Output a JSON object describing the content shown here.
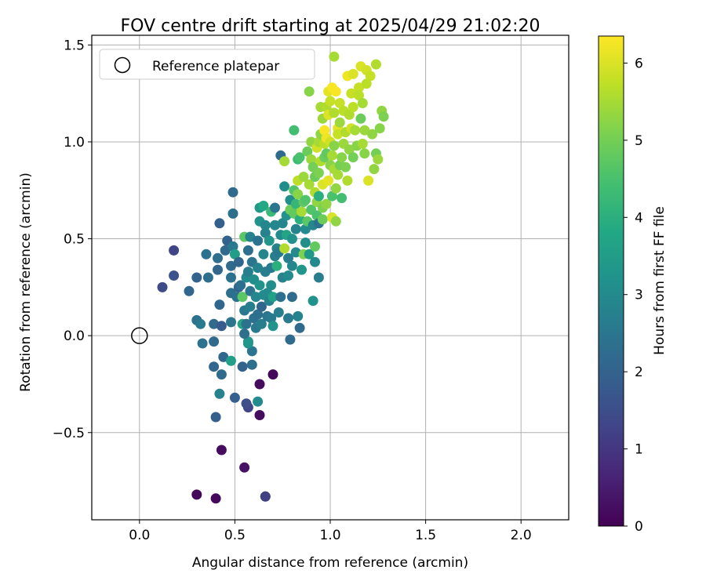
{
  "chart_data": {
    "type": "scatter",
    "title": "FOV centre drift starting at 2025/04/29 21:02:20",
    "xlabel": "Angular distance from reference (arcmin)",
    "ylabel": "Rotation from reference (arcmin)",
    "xlim": [
      -0.25,
      2.25
    ],
    "ylim": [
      -0.95,
      1.55
    ],
    "xticks": [
      0.0,
      0.5,
      1.0,
      1.5,
      2.0
    ],
    "xtick_labels": [
      "0.0",
      "0.5",
      "1.0",
      "1.5",
      "2.0"
    ],
    "yticks": [
      -0.5,
      0.0,
      0.5,
      1.0,
      1.5
    ],
    "ytick_labels": [
      "−0.5",
      "0.0",
      "0.5",
      "1.0",
      "1.5"
    ],
    "grid": true,
    "legend": {
      "placement": "top-left",
      "entries": [
        "Reference platepar"
      ]
    },
    "reference_point": {
      "x": 0.0,
      "y": 0.0
    },
    "colorbar": {
      "label": "Hours from first FF file",
      "colormap": "viridis",
      "range": [
        0,
        6.35
      ],
      "ticks": [
        0,
        1,
        2,
        3,
        4,
        5,
        6
      ],
      "tick_labels": [
        "0",
        "1",
        "2",
        "3",
        "4",
        "5",
        "6"
      ]
    },
    "series": [
      {
        "points": [
          [
            0.3,
            -0.82,
            0.1
          ],
          [
            0.4,
            -0.84,
            0.1
          ],
          [
            0.43,
            -0.59,
            0.2
          ],
          [
            0.55,
            -0.68,
            0.3
          ],
          [
            0.66,
            -0.83,
            1.6
          ],
          [
            0.66,
            -0.83,
            1.2
          ],
          [
            0.63,
            -0.41,
            0.2
          ],
          [
            0.63,
            -0.25,
            0.2
          ],
          [
            0.7,
            -0.2,
            0.1
          ],
          [
            0.57,
            -0.37,
            1.3
          ],
          [
            0.56,
            -0.35,
            1.5
          ],
          [
            0.5,
            -0.32,
            1.9
          ],
          [
            0.4,
            -0.42,
            1.9
          ],
          [
            0.42,
            -0.3,
            2.8
          ],
          [
            0.62,
            -0.34,
            3.0
          ],
          [
            0.39,
            -0.16,
            2.1
          ],
          [
            0.43,
            -0.2,
            2.2
          ],
          [
            0.44,
            -0.11,
            2.1
          ],
          [
            0.48,
            -0.13,
            3.6
          ],
          [
            0.54,
            -0.16,
            2.0
          ],
          [
            0.59,
            -0.15,
            2.3
          ],
          [
            0.59,
            -0.08,
            2.5
          ],
          [
            0.57,
            -0.04,
            3.2
          ],
          [
            0.57,
            -0.03,
            3.3
          ],
          [
            0.12,
            0.25,
            1.4
          ],
          [
            0.18,
            0.44,
            1.3
          ],
          [
            0.18,
            0.31,
            1.6
          ],
          [
            0.26,
            0.23,
            2.1
          ],
          [
            0.3,
            0.3,
            2.0
          ],
          [
            0.3,
            0.08,
            2.4
          ],
          [
            0.32,
            0.06,
            2.6
          ],
          [
            0.33,
            -0.04,
            2.4
          ],
          [
            0.36,
            0.3,
            2.3
          ],
          [
            0.35,
            0.42,
            2.4
          ],
          [
            0.39,
            0.06,
            2.2
          ],
          [
            0.39,
            -0.03,
            2.2
          ],
          [
            0.41,
            0.34,
            2.1
          ],
          [
            0.41,
            0.4,
            2.3
          ],
          [
            0.42,
            0.16,
            2.1
          ],
          [
            0.43,
            0.05,
            1.8
          ],
          [
            0.42,
            0.58,
            1.9
          ],
          [
            0.45,
            0.44,
            2.2
          ],
          [
            0.46,
            0.49,
            2.0
          ],
          [
            0.48,
            0.22,
            2.3
          ],
          [
            0.48,
            0.3,
            2.4
          ],
          [
            0.48,
            0.36,
            2.2
          ],
          [
            0.49,
            0.46,
            2.6
          ],
          [
            0.48,
            0.07,
            2.5
          ],
          [
            0.49,
            0.74,
            2.2
          ],
          [
            0.49,
            0.63,
            2.3
          ],
          [
            0.5,
            0.42,
            3.5
          ],
          [
            0.51,
            0.2,
            2.4
          ],
          [
            0.52,
            0.25,
            2.0
          ],
          [
            0.52,
            0.38,
            2.1
          ],
          [
            0.53,
            0.26,
            2.3
          ],
          [
            0.54,
            0.06,
            3.7
          ],
          [
            0.55,
            0.13,
            2.6
          ],
          [
            0.54,
            0.2,
            4.7
          ],
          [
            0.55,
            0.51,
            4.7
          ],
          [
            0.55,
            0.01,
            2.3
          ],
          [
            0.56,
            0.06,
            2.4
          ],
          [
            0.56,
            0.3,
            3.0
          ],
          [
            0.57,
            0.44,
            2.3
          ],
          [
            0.57,
            0.33,
            2.7
          ],
          [
            0.58,
            0.15,
            2.7
          ],
          [
            0.58,
            0.23,
            2.5
          ],
          [
            0.58,
            0.51,
            2.8
          ],
          [
            0.59,
            0.38,
            2.5
          ],
          [
            0.6,
            0.09,
            2.4
          ],
          [
            0.6,
            0.29,
            3.1
          ],
          [
            0.61,
            0.04,
            2.6
          ],
          [
            0.61,
            0.2,
            2.9
          ],
          [
            0.62,
            0.11,
            2.3
          ],
          [
            0.62,
            0.49,
            2.4
          ],
          [
            0.62,
            0.35,
            2.8
          ],
          [
            0.63,
            0.26,
            3.2
          ],
          [
            0.63,
            0.66,
            3.4
          ],
          [
            0.63,
            0.59,
            3.2
          ],
          [
            0.64,
            0.06,
            2.7
          ],
          [
            0.64,
            0.15,
            2.1
          ],
          [
            0.65,
            0.21,
            3.0
          ],
          [
            0.65,
            0.42,
            2.9
          ],
          [
            0.65,
            0.67,
            3.8
          ],
          [
            0.66,
            0.33,
            2.7
          ],
          [
            0.66,
            0.53,
            2.8
          ],
          [
            0.66,
            0.57,
            2.9
          ],
          [
            0.67,
            0.1,
            2.5
          ],
          [
            0.67,
            0.22,
            3.0
          ],
          [
            0.68,
            0.18,
            2.8
          ],
          [
            0.68,
            0.49,
            3.3
          ],
          [
            0.69,
            0.09,
            2.6
          ],
          [
            0.69,
            0.26,
            3.1
          ],
          [
            0.69,
            0.35,
            2.6
          ],
          [
            0.69,
            0.64,
            4.3
          ],
          [
            0.7,
            0.05,
            3.2
          ],
          [
            0.7,
            0.2,
            3.6
          ],
          [
            0.71,
            0.41,
            2.7
          ],
          [
            0.71,
            0.57,
            2.9
          ],
          [
            0.71,
            0.66,
            2.5
          ],
          [
            0.72,
            0.36,
            4.0
          ],
          [
            0.72,
            0.45,
            2.8
          ],
          [
            0.73,
            0.12,
            2.7
          ],
          [
            0.73,
            0.43,
            2.6
          ],
          [
            0.74,
            0.2,
            2.3
          ],
          [
            0.74,
            0.52,
            3.0
          ],
          [
            0.74,
            0.93,
            2.2
          ],
          [
            0.75,
            0.3,
            2.8
          ],
          [
            0.75,
            0.58,
            2.9
          ],
          [
            0.76,
            0.77,
            3.1
          ],
          [
            0.76,
            0.9,
            5.5
          ],
          [
            0.76,
            0.45,
            5.6
          ],
          [
            0.77,
            0.52,
            3.7
          ],
          [
            0.77,
            0.62,
            3.2
          ],
          [
            0.78,
            0.09,
            2.6
          ],
          [
            0.78,
            0.31,
            3.0
          ],
          [
            0.78,
            0.4,
            2.7
          ],
          [
            0.79,
            0.7,
            3.1
          ],
          [
            0.79,
            0.65,
            4.9
          ],
          [
            0.79,
            -0.02,
            2.2
          ],
          [
            0.8,
            0.2,
            2.2
          ],
          [
            0.8,
            0.36,
            2.9
          ],
          [
            0.8,
            0.5,
            3.2
          ],
          [
            0.81,
            0.75,
            4.6
          ],
          [
            0.81,
            1.06,
            4.4
          ],
          [
            0.81,
            0.63,
            4.8
          ],
          [
            0.82,
            0.43,
            3.0
          ],
          [
            0.82,
            0.55,
            2.8
          ],
          [
            0.82,
            0.68,
            4.2
          ],
          [
            0.83,
            0.1,
            2.8
          ],
          [
            0.83,
            0.8,
            5.7
          ],
          [
            0.83,
            0.91,
            4.3
          ],
          [
            0.83,
            0.73,
            5.2
          ],
          [
            0.84,
            0.04,
            2.2
          ],
          [
            0.84,
            0.6,
            4.0
          ],
          [
            0.84,
            0.92,
            4.5
          ],
          [
            0.85,
            0.64,
            5.5
          ],
          [
            0.85,
            0.34,
            3.3
          ],
          [
            0.86,
            0.42,
            5.1
          ],
          [
            0.86,
            0.69,
            4.8
          ],
          [
            0.86,
            0.82,
            5.4
          ],
          [
            0.87,
            0.48,
            3.1
          ],
          [
            0.87,
            0.55,
            3.0
          ],
          [
            0.87,
            0.7,
            4.6
          ],
          [
            0.88,
            0.59,
            4.7
          ],
          [
            0.88,
            0.95,
            4.9
          ],
          [
            0.89,
            0.78,
            5.5
          ],
          [
            0.89,
            1.26,
            5.2
          ],
          [
            0.89,
            0.42,
            3.4
          ],
          [
            0.9,
            0.65,
            4.6
          ],
          [
            0.9,
            0.91,
            5.4
          ],
          [
            0.9,
            1.0,
            5.3
          ],
          [
            0.91,
            0.18,
            3.2
          ],
          [
            0.91,
            0.57,
            2.9
          ],
          [
            0.91,
            0.87,
            5.0
          ],
          [
            0.92,
            0.38,
            3.0
          ],
          [
            0.92,
            0.46,
            4.8
          ],
          [
            0.92,
            0.74,
            5.6
          ],
          [
            0.92,
            0.82,
            4.9
          ],
          [
            0.93,
            0.97,
            5.9
          ],
          [
            0.93,
            0.69,
            5.3
          ],
          [
            0.93,
            0.62,
            4.5
          ],
          [
            0.94,
            0.3,
            2.7
          ],
          [
            0.94,
            0.58,
            2.4
          ],
          [
            0.94,
            0.72,
            4.0
          ],
          [
            0.94,
            0.84,
            5.1
          ],
          [
            0.94,
            1.0,
            5.5
          ],
          [
            0.95,
            1.18,
            5.5
          ],
          [
            0.95,
            0.9,
            5.6
          ],
          [
            0.95,
            1.04,
            5.3
          ],
          [
            0.96,
            0.6,
            4.9
          ],
          [
            0.96,
            0.78,
            6.0
          ],
          [
            0.96,
            0.66,
            5.1
          ],
          [
            0.96,
            1.12,
            5.4
          ],
          [
            0.97,
            0.99,
            5.7
          ],
          [
            0.97,
            1.06,
            6.3
          ],
          [
            0.97,
            0.92,
            4.9
          ],
          [
            0.98,
            0.68,
            5.3
          ],
          [
            0.98,
            0.94,
            4.8
          ],
          [
            0.98,
            1.18,
            5.6
          ],
          [
            0.98,
            1.02,
            6.2
          ],
          [
            0.99,
            1.26,
            6.1
          ],
          [
            0.99,
            1.14,
            6.0
          ],
          [
            0.99,
            0.8,
            6.1
          ],
          [
            1.0,
            0.88,
            5.2
          ],
          [
            1.0,
            1.0,
            5.9
          ],
          [
            1.0,
            1.21,
            5.8
          ],
          [
            1.01,
            1.28,
            6.3
          ],
          [
            1.01,
            0.72,
            4.5
          ],
          [
            1.01,
            0.93,
            5.5
          ],
          [
            1.01,
            0.61,
            6.0
          ],
          [
            1.02,
            1.44,
            5.5
          ],
          [
            1.02,
            1.15,
            5.6
          ],
          [
            1.02,
            0.98,
            5.2
          ],
          [
            1.02,
            0.86,
            5.5
          ],
          [
            1.03,
            1.26,
            6.3
          ],
          [
            1.03,
            0.76,
            5.3
          ],
          [
            1.03,
            0.59,
            5.3
          ],
          [
            1.04,
            1.07,
            6.1
          ],
          [
            1.04,
            0.83,
            5.5
          ],
          [
            1.04,
            1.04,
            5.8
          ],
          [
            1.05,
            1.2,
            5.8
          ],
          [
            1.05,
            0.88,
            5.0
          ],
          [
            1.05,
            1.1,
            5.4
          ],
          [
            1.06,
            0.92,
            5.2
          ],
          [
            1.06,
            0.71,
            4.4
          ],
          [
            1.07,
            1.16,
            5.7
          ],
          [
            1.07,
            0.99,
            5.4
          ],
          [
            1.08,
            1.05,
            5.6
          ],
          [
            1.08,
            0.87,
            5.1
          ],
          [
            1.09,
            0.8,
            5.6
          ],
          [
            1.09,
            1.34,
            6.2
          ],
          [
            1.1,
            1.14,
            5.6
          ],
          [
            1.1,
            0.96,
            5.3
          ],
          [
            1.11,
            1.07,
            5.9
          ],
          [
            1.11,
            1.25,
            5.8
          ],
          [
            1.12,
            1.35,
            6.0
          ],
          [
            1.12,
            1.18,
            5.7
          ],
          [
            1.12,
            0.92,
            5.0
          ],
          [
            1.13,
            1.06,
            5.5
          ],
          [
            1.14,
            0.98,
            5.2
          ],
          [
            1.15,
            1.28,
            5.8
          ],
          [
            1.15,
            1.24,
            5.7
          ],
          [
            1.16,
            1.39,
            6.0
          ],
          [
            1.16,
            1.12,
            4.9
          ],
          [
            1.17,
            1.2,
            5.5
          ],
          [
            1.17,
            0.99,
            5.5
          ],
          [
            1.18,
            1.06,
            5.4
          ],
          [
            1.18,
            0.94,
            5.2
          ],
          [
            1.19,
            1.37,
            5.9
          ],
          [
            1.2,
            0.8,
            6.0
          ],
          [
            1.21,
            1.34,
            5.8
          ],
          [
            1.22,
            1.04,
            5.3
          ],
          [
            1.23,
            0.86,
            5.3
          ],
          [
            1.24,
            1.4,
            5.6
          ],
          [
            1.24,
            0.94,
            5.0
          ],
          [
            1.25,
            0.91,
            5.4
          ],
          [
            1.26,
            1.07,
            5.2
          ],
          [
            1.27,
            1.16,
            5.3
          ],
          [
            1.28,
            1.13,
            5.1
          ],
          [
            1.19,
            1.3,
            5.7
          ]
        ]
      }
    ]
  }
}
